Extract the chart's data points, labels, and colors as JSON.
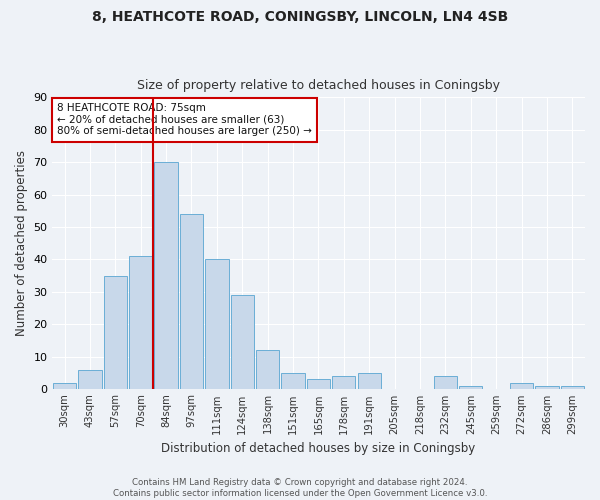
{
  "title": "8, HEATHCOTE ROAD, CONINGSBY, LINCOLN, LN4 4SB",
  "subtitle": "Size of property relative to detached houses in Coningsby",
  "xlabel": "Distribution of detached houses by size in Coningsby",
  "ylabel": "Number of detached properties",
  "categories": [
    "30sqm",
    "43sqm",
    "57sqm",
    "70sqm",
    "84sqm",
    "97sqm",
    "111sqm",
    "124sqm",
    "138sqm",
    "151sqm",
    "165sqm",
    "178sqm",
    "191sqm",
    "205sqm",
    "218sqm",
    "232sqm",
    "245sqm",
    "259sqm",
    "272sqm",
    "286sqm",
    "299sqm"
  ],
  "values": [
    2,
    6,
    35,
    41,
    70,
    54,
    40,
    29,
    12,
    5,
    3,
    4,
    5,
    0,
    0,
    4,
    1,
    0,
    2,
    1,
    1
  ],
  "bar_color": "#c8d8ea",
  "bar_edge_color": "#6aaed6",
  "vline_x": 3.5,
  "vline_color": "#cc0000",
  "ylim": [
    0,
    90
  ],
  "yticks": [
    0,
    10,
    20,
    30,
    40,
    50,
    60,
    70,
    80,
    90
  ],
  "annotation_title": "8 HEATHCOTE ROAD: 75sqm",
  "annotation_line1": "← 20% of detached houses are smaller (63)",
  "annotation_line2": "80% of semi-detached houses are larger (250) →",
  "annotation_box_edgecolor": "#cc0000",
  "footer_line1": "Contains HM Land Registry data © Crown copyright and database right 2024.",
  "footer_line2": "Contains public sector information licensed under the Open Government Licence v3.0.",
  "fig_facecolor": "#eef2f7",
  "ax_facecolor": "#eef2f7",
  "grid_color": "#ffffff"
}
